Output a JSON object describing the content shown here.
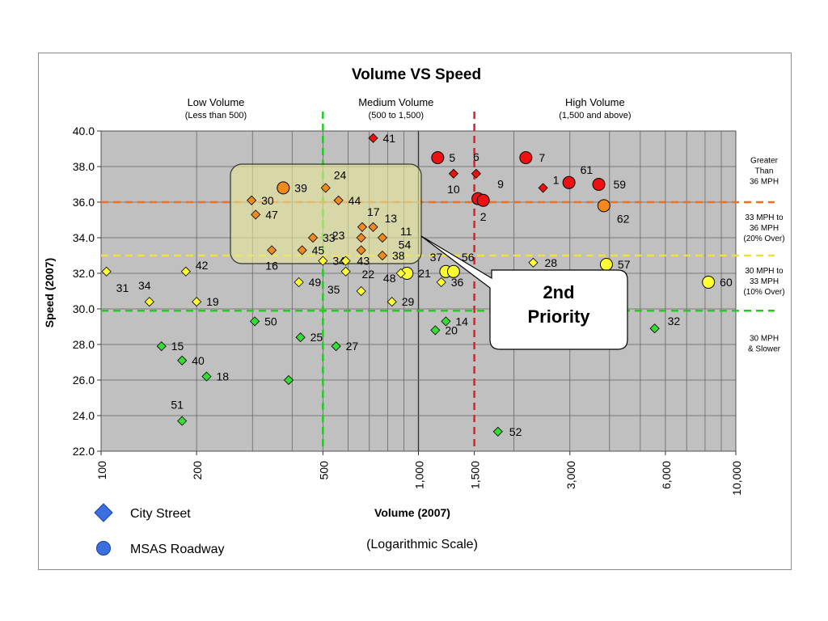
{
  "chart_data": {
    "type": "scatter",
    "title": "Volume VS Speed",
    "xlabel": "Volume (2007)",
    "xlabel_note": "(Logarithmic Scale)",
    "ylabel": "Speed (2007)",
    "x_scale": "log",
    "xlim": [
      100,
      10000
    ],
    "ylim": [
      22,
      40
    ],
    "x_ticks": [
      100,
      200,
      500,
      1000,
      1500,
      3000,
      6000,
      10000
    ],
    "x_tick_labels": [
      "100",
      "200",
      "500",
      "1,000",
      "1,500",
      "3,000",
      "6,000",
      "10,000"
    ],
    "y_ticks": [
      22,
      24,
      26,
      28,
      30,
      32,
      34,
      36,
      38,
      40
    ],
    "y_tick_labels": [
      "22.0",
      "24.0",
      "26.0",
      "28.0",
      "30.0",
      "32.0",
      "34.0",
      "36.0",
      "38.0",
      "40.0"
    ],
    "grid": true,
    "volume_bands": [
      {
        "x": 500,
        "color": "#22cc22",
        "title": "Low Volume",
        "subtitle": "(Less than 500)",
        "title_x": 230
      },
      {
        "x": 1500,
        "color": "#e02020",
        "title": "Medium Volume",
        "subtitle": "(500 to 1,500)",
        "title_x": 850
      },
      {
        "title": "High Volume",
        "subtitle": "(1,500 and above)",
        "title_x": 3600
      }
    ],
    "speed_bands": [
      {
        "y": 36,
        "color": "#f07020",
        "label": [
          "Greater",
          "Than",
          "36 MPH"
        ],
        "label_y": 37.8
      },
      {
        "y": 33,
        "color": "#f0e040",
        "label": [
          "33 MPH to",
          "36 MPH",
          "(20% Over)"
        ],
        "label_y": 34.6
      },
      {
        "y": 29.9,
        "color": "#22cc22",
        "label": [
          "30 MPH to",
          "33 MPH",
          "(10% Over)"
        ],
        "label_y": 31.6
      },
      {
        "label": [
          "30 MPH",
          "& Slower"
        ],
        "label_y": 28.1
      }
    ],
    "colors": {
      "red": "#ee1111",
      "orange": "#f08a1c",
      "yellow": "#ffff33",
      "green": "#33dd33"
    },
    "points": [
      {
        "id": "41",
        "x": 720,
        "y": 39.6,
        "shape": "diamond",
        "color": "red",
        "ldx": 12,
        "ldy": 0
      },
      {
        "id": "5",
        "x": 1150,
        "y": 38.5,
        "shape": "circle",
        "color": "red",
        "ldx": 14,
        "ldy": 0
      },
      {
        "id": "10",
        "x": 1290,
        "y": 37.6,
        "shape": "diamond",
        "color": "red",
        "ldx": 0,
        "ldy": 19
      },
      {
        "id": "6",
        "x": 1520,
        "y": 37.6,
        "shape": "diamond",
        "color": "red",
        "ldx": 0,
        "ldy": -21
      },
      {
        "id": "9",
        "x": 1540,
        "y": 36.2,
        "shape": "circle",
        "color": "red",
        "ldx": 24,
        "ldy": -18
      },
      {
        "id": "2",
        "x": 1600,
        "y": 36.1,
        "shape": "circle",
        "color": "red",
        "ldx": 0,
        "ldy": 20
      },
      {
        "id": "7",
        "x": 2180,
        "y": 38.5,
        "shape": "circle",
        "color": "red",
        "ldx": 16,
        "ldy": 0
      },
      {
        "id": "1",
        "x": 2470,
        "y": 36.8,
        "shape": "diamond",
        "color": "red",
        "ldx": 12,
        "ldy": -10
      },
      {
        "id": "61",
        "x": 2980,
        "y": 37.1,
        "shape": "circle",
        "color": "red",
        "ldx": 14,
        "ldy": -16
      },
      {
        "id": "59",
        "x": 3700,
        "y": 37.0,
        "shape": "circle",
        "color": "red",
        "ldx": 18,
        "ldy": 0
      },
      {
        "id": "62",
        "x": 3840,
        "y": 35.8,
        "shape": "circle",
        "color": "orange",
        "ldx": 16,
        "ldy": 16
      },
      {
        "id": "39",
        "x": 375,
        "y": 36.8,
        "shape": "circle",
        "color": "orange",
        "ldx": 14,
        "ldy": 0
      },
      {
        "id": "30",
        "x": 298,
        "y": 36.1,
        "shape": "diamond",
        "color": "orange",
        "ldx": 12,
        "ldy": 0
      },
      {
        "id": "47",
        "x": 307,
        "y": 35.3,
        "shape": "diamond",
        "color": "orange",
        "ldx": 12,
        "ldy": 0
      },
      {
        "id": "24",
        "x": 510,
        "y": 36.8,
        "shape": "diamond",
        "color": "orange",
        "ldx": 10,
        "ldy": -16
      },
      {
        "id": "44",
        "x": 560,
        "y": 36.1,
        "shape": "diamond",
        "color": "orange",
        "ldx": 12,
        "ldy": 0
      },
      {
        "id": "17",
        "x": 665,
        "y": 34.6,
        "shape": "diamond",
        "color": "orange",
        "ldx": 6,
        "ldy": -19
      },
      {
        "id": "13",
        "x": 720,
        "y": 34.6,
        "shape": "diamond",
        "color": "orange",
        "ldx": 14,
        "ldy": -11
      },
      {
        "id": "23",
        "x": 660,
        "y": 34.0,
        "shape": "diamond",
        "color": "orange",
        "ldx": -28,
        "ldy": -3
      },
      {
        "id": "11",
        "x": 770,
        "y": 34.0,
        "shape": "diamond",
        "color": "orange",
        "ldx": 22,
        "ldy": -8
      },
      {
        "id": "33",
        "x": 465,
        "y": 34.0,
        "shape": "diamond",
        "color": "orange",
        "ldx": 12,
        "ldy": 0
      },
      {
        "id": "45",
        "x": 430,
        "y": 33.3,
        "shape": "diamond",
        "color": "orange",
        "ldx": 12,
        "ldy": 0
      },
      {
        "id": "16",
        "x": 345,
        "y": 33.3,
        "shape": "diamond",
        "color": "orange",
        "ldx": 0,
        "ldy": 19
      },
      {
        "id": "54",
        "x": 660,
        "y": 33.3,
        "shape": "diamond",
        "color": "orange",
        "ldx": 46,
        "ldy": -7
      },
      {
        "id": "38",
        "x": 770,
        "y": 33.0,
        "shape": "diamond",
        "color": "orange",
        "ldx": 12,
        "ldy": 0
      },
      {
        "id": "37",
        "x": 1220,
        "y": 32.1,
        "shape": "circle",
        "color": "yellow",
        "ldx": -12,
        "ldy": -18
      },
      {
        "id": "56",
        "x": 1290,
        "y": 32.1,
        "shape": "circle",
        "color": "yellow",
        "ldx": 10,
        "ldy": -18
      },
      {
        "id": "21",
        "x": 920,
        "y": 32.0,
        "shape": "circle",
        "color": "yellow",
        "ldx": 14,
        "ldy": 0
      },
      {
        "id": "22",
        "x": 590,
        "y": 32.1,
        "shape": "diamond",
        "color": "yellow",
        "ldx": 20,
        "ldy": 3
      },
      {
        "id": "48",
        "x": 880,
        "y": 32.0,
        "shape": "diamond",
        "color": "yellow",
        "ldx": -14,
        "ldy": 6
      },
      {
        "id": "34",
        "x": 500,
        "y": 32.7,
        "shape": "diamond",
        "color": "yellow",
        "ldx": 12,
        "ldy": 0
      },
      {
        "id": "43",
        "x": 590,
        "y": 32.7,
        "shape": "diamond",
        "color": "yellow",
        "ldx": 14,
        "ldy": 0
      },
      {
        "id": "36",
        "x": 1180,
        "y": 31.5,
        "shape": "diamond",
        "color": "yellow",
        "ldx": 12,
        "ldy": 0
      },
      {
        "id": "49",
        "x": 420,
        "y": 31.5,
        "shape": "diamond",
        "color": "yellow",
        "ldx": 12,
        "ldy": 0
      },
      {
        "id": "35",
        "x": 660,
        "y": 31.0,
        "shape": "diamond",
        "color": "yellow",
        "ldx": -34,
        "ldy": -2
      },
      {
        "id": "29",
        "x": 825,
        "y": 30.4,
        "shape": "diamond",
        "color": "yellow",
        "ldx": 12,
        "ldy": 0
      },
      {
        "id": "42",
        "x": 185,
        "y": 32.1,
        "shape": "diamond",
        "color": "yellow",
        "ldx": 12,
        "ldy": -8
      },
      {
        "id": "31",
        "x": 104,
        "y": 32.1,
        "shape": "diamond",
        "color": "yellow",
        "ldx": 12,
        "ldy": 20
      },
      {
        "id": "34",
        "x": 142,
        "y": 30.4,
        "shape": "diamond",
        "color": "yellow",
        "ldx": -6,
        "ldy": -20
      },
      {
        "id": "19",
        "x": 200,
        "y": 30.4,
        "shape": "diamond",
        "color": "yellow",
        "ldx": 12,
        "ldy": 0
      },
      {
        "id": "28",
        "x": 2300,
        "y": 32.6,
        "shape": "diamond",
        "color": "yellow",
        "ldx": 14,
        "ldy": 0
      },
      {
        "id": "57",
        "x": 3910,
        "y": 32.5,
        "shape": "circle",
        "color": "yellow",
        "ldx": 14,
        "ldy": 0
      },
      {
        "id": "60",
        "x": 8200,
        "y": 31.5,
        "shape": "circle",
        "color": "yellow",
        "ldx": 14,
        "ldy": 0
      },
      {
        "id": "14",
        "x": 1220,
        "y": 29.3,
        "shape": "diamond",
        "color": "green",
        "ldx": 12,
        "ldy": 0
      },
      {
        "id": "20",
        "x": 1130,
        "y": 28.8,
        "shape": "diamond",
        "color": "green",
        "ldx": 12,
        "ldy": 0
      },
      {
        "id": "50",
        "x": 305,
        "y": 29.3,
        "shape": "diamond",
        "color": "green",
        "ldx": 12,
        "ldy": 0
      },
      {
        "id": "25",
        "x": 425,
        "y": 28.4,
        "shape": "diamond",
        "color": "green",
        "ldx": 12,
        "ldy": 0
      },
      {
        "id": "27",
        "x": 550,
        "y": 27.9,
        "shape": "diamond",
        "color": "green",
        "ldx": 12,
        "ldy": 0
      },
      {
        "id": "15",
        "x": 155,
        "y": 27.9,
        "shape": "diamond",
        "color": "green",
        "ldx": 12,
        "ldy": 0
      },
      {
        "id": "40",
        "x": 180,
        "y": 27.1,
        "shape": "diamond",
        "color": "green",
        "ldx": 12,
        "ldy": 0
      },
      {
        "id": "18",
        "x": 215,
        "y": 26.2,
        "shape": "diamond",
        "color": "green",
        "ldx": 12,
        "ldy": 0
      },
      {
        "id": "",
        "x": 390,
        "y": 26.0,
        "shape": "diamond",
        "color": "green",
        "ldx": 0,
        "ldy": 0
      },
      {
        "id": "51",
        "x": 180,
        "y": 23.7,
        "shape": "diamond",
        "color": "green",
        "ldx": -6,
        "ldy": -20
      },
      {
        "id": "52",
        "x": 1780,
        "y": 23.1,
        "shape": "diamond",
        "color": "green",
        "ldx": 14,
        "ldy": 0
      },
      {
        "id": "32",
        "x": 5550,
        "y": 28.9,
        "shape": "diamond",
        "color": "green",
        "ldx": 16,
        "ldy": -9
      }
    ],
    "callout": {
      "lines": [
        "2nd",
        "Priority"
      ]
    },
    "legend": [
      {
        "shape": "diamond",
        "label": "City Street"
      },
      {
        "shape": "circle",
        "label": "MSAS Roadway"
      }
    ]
  }
}
